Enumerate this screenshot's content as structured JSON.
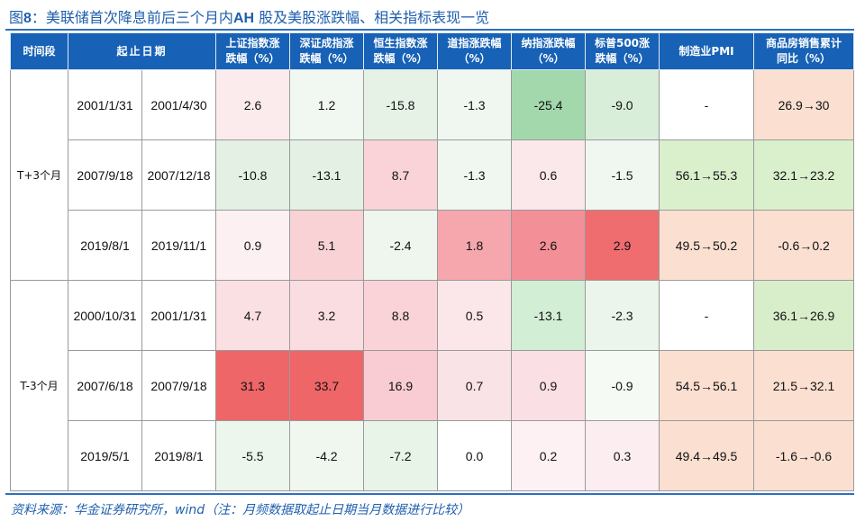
{
  "title": {
    "prefix": "图",
    "number": "8",
    "text": "：美联储首次降息前后三个月内",
    "ah": "AH",
    "rest": " 股及美股涨跌幅、相关指标表现一览"
  },
  "headers": [
    "时间段",
    "起止日期",
    "上证指数涨跌幅（%）",
    "深证成指涨跌幅（%）",
    "恒生指数涨跌幅（%）",
    "道指涨跌幅（%）",
    "纳指涨跌幅（%）",
    "标普500涨跌幅（%）",
    "制造业PMI",
    "商品房销售累计同比（%）"
  ],
  "header_lines": {
    "h2": [
      "上证指数涨",
      "跌幅（%）"
    ],
    "h3": [
      "深证成指涨",
      "跌幅（%）"
    ],
    "h4": [
      "恒生指数涨",
      "跌幅（%）"
    ],
    "h5": [
      "道指涨跌幅",
      "（%）"
    ],
    "h6": [
      "纳指涨跌幅",
      "（%）"
    ],
    "h7": [
      "标普500涨",
      "跌幅（%）"
    ],
    "h9": [
      "商品房销售累计",
      "同比（%）"
    ]
  },
  "groups": [
    {
      "label": "T+3个月",
      "rows": [
        {
          "start": "2001/1/31",
          "end": "2001/4/30",
          "sh": "2.6",
          "sz": "1.2",
          "hs": "-15.8",
          "dow": "-1.3",
          "nas": "-25.4",
          "sp": "-9.0",
          "pmi": "-",
          "sales": "26.9→30"
        },
        {
          "start": "2007/9/18",
          "end": "2007/12/18",
          "sh": "-10.8",
          "sz": "-13.1",
          "hs": "8.7",
          "dow": "-1.3",
          "nas": "0.6",
          "sp": "-1.5",
          "pmi": "56.1→55.3",
          "sales": "32.1→23.2"
        },
        {
          "start": "2019/8/1",
          "end": "2019/11/1",
          "sh": "0.9",
          "sz": "5.1",
          "hs": "-2.4",
          "dow": "1.8",
          "nas": "2.6",
          "sp": "2.9",
          "pmi": "49.5→50.2",
          "sales": "-0.6→0.2"
        }
      ]
    },
    {
      "label": "T-3个月",
      "rows": [
        {
          "start": "2000/10/31",
          "end": "2001/1/31",
          "sh": "4.7",
          "sz": "3.2",
          "hs": "8.8",
          "dow": "0.5",
          "nas": "-13.1",
          "sp": "-2.3",
          "pmi": "-",
          "sales": "36.1→26.9"
        },
        {
          "start": "2007/6/18",
          "end": "2007/9/18",
          "sh": "31.3",
          "sz": "33.7",
          "hs": "16.9",
          "dow": "0.7",
          "nas": "0.9",
          "sp": "-0.9",
          "pmi": "54.5→56.1",
          "sales": "21.5→32.1"
        },
        {
          "start": "2019/5/1",
          "end": "2019/8/1",
          "sh": "-5.5",
          "sz": "-4.2",
          "hs": "-7.2",
          "dow": "0.0",
          "nas": "0.2",
          "sp": "0.3",
          "pmi": "49.4→49.5",
          "sales": "-1.6→-0.6"
        }
      ]
    }
  ],
  "colors": {
    "header_bg": "#1762b6",
    "rule": "#2f6ebf",
    "title": "#1f5fae",
    "cells": [
      [
        "#ffffff",
        "#ffffff",
        "#fcebed",
        "#f1f7f1",
        "#e5f2e5",
        "#f0f7f0",
        "#a3d8ac",
        "#d8eed9",
        "#ffffff",
        "#fbe0d2"
      ],
      [
        "#ffffff",
        "#ffffff",
        "#e3f0e3",
        "#e3f0e3",
        "#f9d3d8",
        "#f0f7f0",
        "#fbe8eb",
        "#f0f7f0",
        "#daf0cc",
        "#daf0cc"
      ],
      [
        "#ffffff",
        "#ffffff",
        "#fcf0f2",
        "#f8d2d5",
        "#eef6ee",
        "#f5a7ad",
        "#f38f96",
        "#ef6c6f",
        "#fbe0d2",
        "#fbe0d2"
      ],
      [
        "#ffffff",
        "#ffffff",
        "#fae0e3",
        "#f9dde1",
        "#f9d3d8",
        "#fbe6e9",
        "#d2eed5",
        "#ebf5eb",
        "#ffffff",
        "#d8eecb"
      ],
      [
        "#ffffff",
        "#ffffff",
        "#ef6668",
        "#ef6668",
        "#f8ccd2",
        "#fae3e6",
        "#fae0e4",
        "#f5faf5",
        "#fbe0d2",
        "#fbe0d2"
      ],
      [
        "#ffffff",
        "#ffffff",
        "#edf6ed",
        "#eff7ef",
        "#e8f4e8",
        "#ffffff",
        "#fdf1f3",
        "#fcedf0",
        "#fbe0d2",
        "#fbe0d2"
      ]
    ]
  },
  "source": "资料来源：华金证券研究所，wind（注：月频数据取起止日期当月数据进行比较）"
}
